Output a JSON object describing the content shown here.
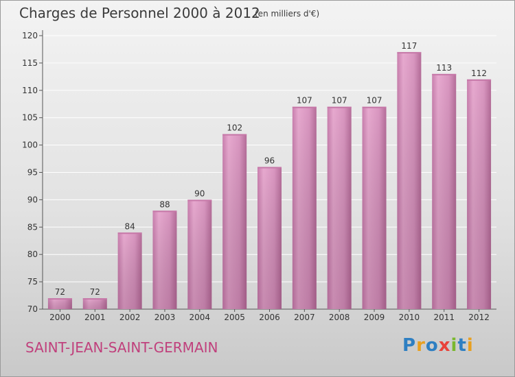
{
  "header": {
    "title": "Charges de Personnel 2000 à 2012",
    "subtitle": "(en milliers d'€)"
  },
  "footer": {
    "city": "SAINT-JEAN-SAINT-GERMAIN",
    "logo_text": "Proxiti",
    "logo_colors": [
      "#2e7fc2",
      "#e8a020",
      "#2e7fc2",
      "#e8433a",
      "#7ab82e",
      "#2e7fc2",
      "#e8a020"
    ]
  },
  "colors": {
    "bar": "#d68fbb",
    "bar_light": "#e7a9cf",
    "bar_dark": "#b56d99",
    "grid": "#ffffff",
    "axis": "#555555",
    "text": "#333333"
  },
  "chart_data": {
    "type": "bar",
    "title": "Charges de Personnel 2000 à 2012",
    "subtitle": "(en milliers d'€)",
    "categories": [
      "2000",
      "2001",
      "2002",
      "2003",
      "2004",
      "2005",
      "2006",
      "2007",
      "2008",
      "2009",
      "2010",
      "2011",
      "2012"
    ],
    "values": [
      72,
      72,
      84,
      88,
      90,
      102,
      96,
      107,
      107,
      107,
      117,
      113,
      112
    ],
    "ylim": [
      70,
      120
    ],
    "yticks": [
      70,
      75,
      80,
      85,
      90,
      95,
      100,
      105,
      110,
      115,
      120
    ],
    "xlabel": "",
    "ylabel": "",
    "grid": true,
    "legend": "none"
  }
}
